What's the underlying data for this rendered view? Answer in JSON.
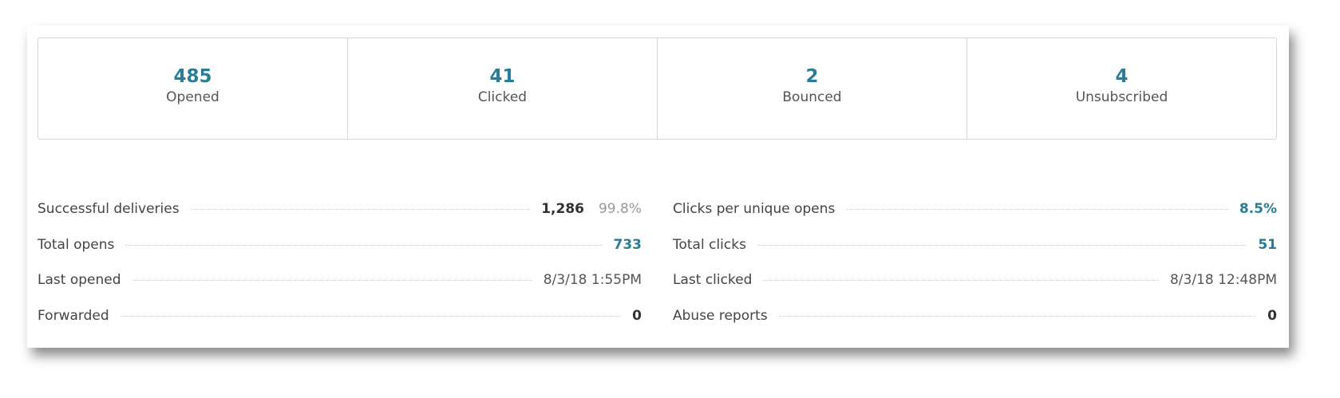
{
  "stats": [
    {
      "value": "485",
      "label": "Opened"
    },
    {
      "value": "41",
      "label": "Clicked"
    },
    {
      "value": "2",
      "label": "Bounced"
    },
    {
      "value": "4",
      "label": "Unsubscribed"
    }
  ],
  "left_rows": [
    {
      "label": "Successful deliveries",
      "value": "1,286",
      "extra": "99.8%"
    },
    {
      "label": "Total opens",
      "value": "733"
    },
    {
      "label": "Last opened",
      "value": "8/3/18 1:55PM"
    },
    {
      "label": "Forwarded",
      "value": "0"
    }
  ],
  "right_rows": [
    {
      "label": "Clicks per unique opens",
      "value": "8.5%"
    },
    {
      "label": "Total clicks",
      "value": "51"
    },
    {
      "label": "Last clicked",
      "value": "8/3/18 12:48PM"
    },
    {
      "label": "Abuse reports",
      "value": "0"
    }
  ]
}
